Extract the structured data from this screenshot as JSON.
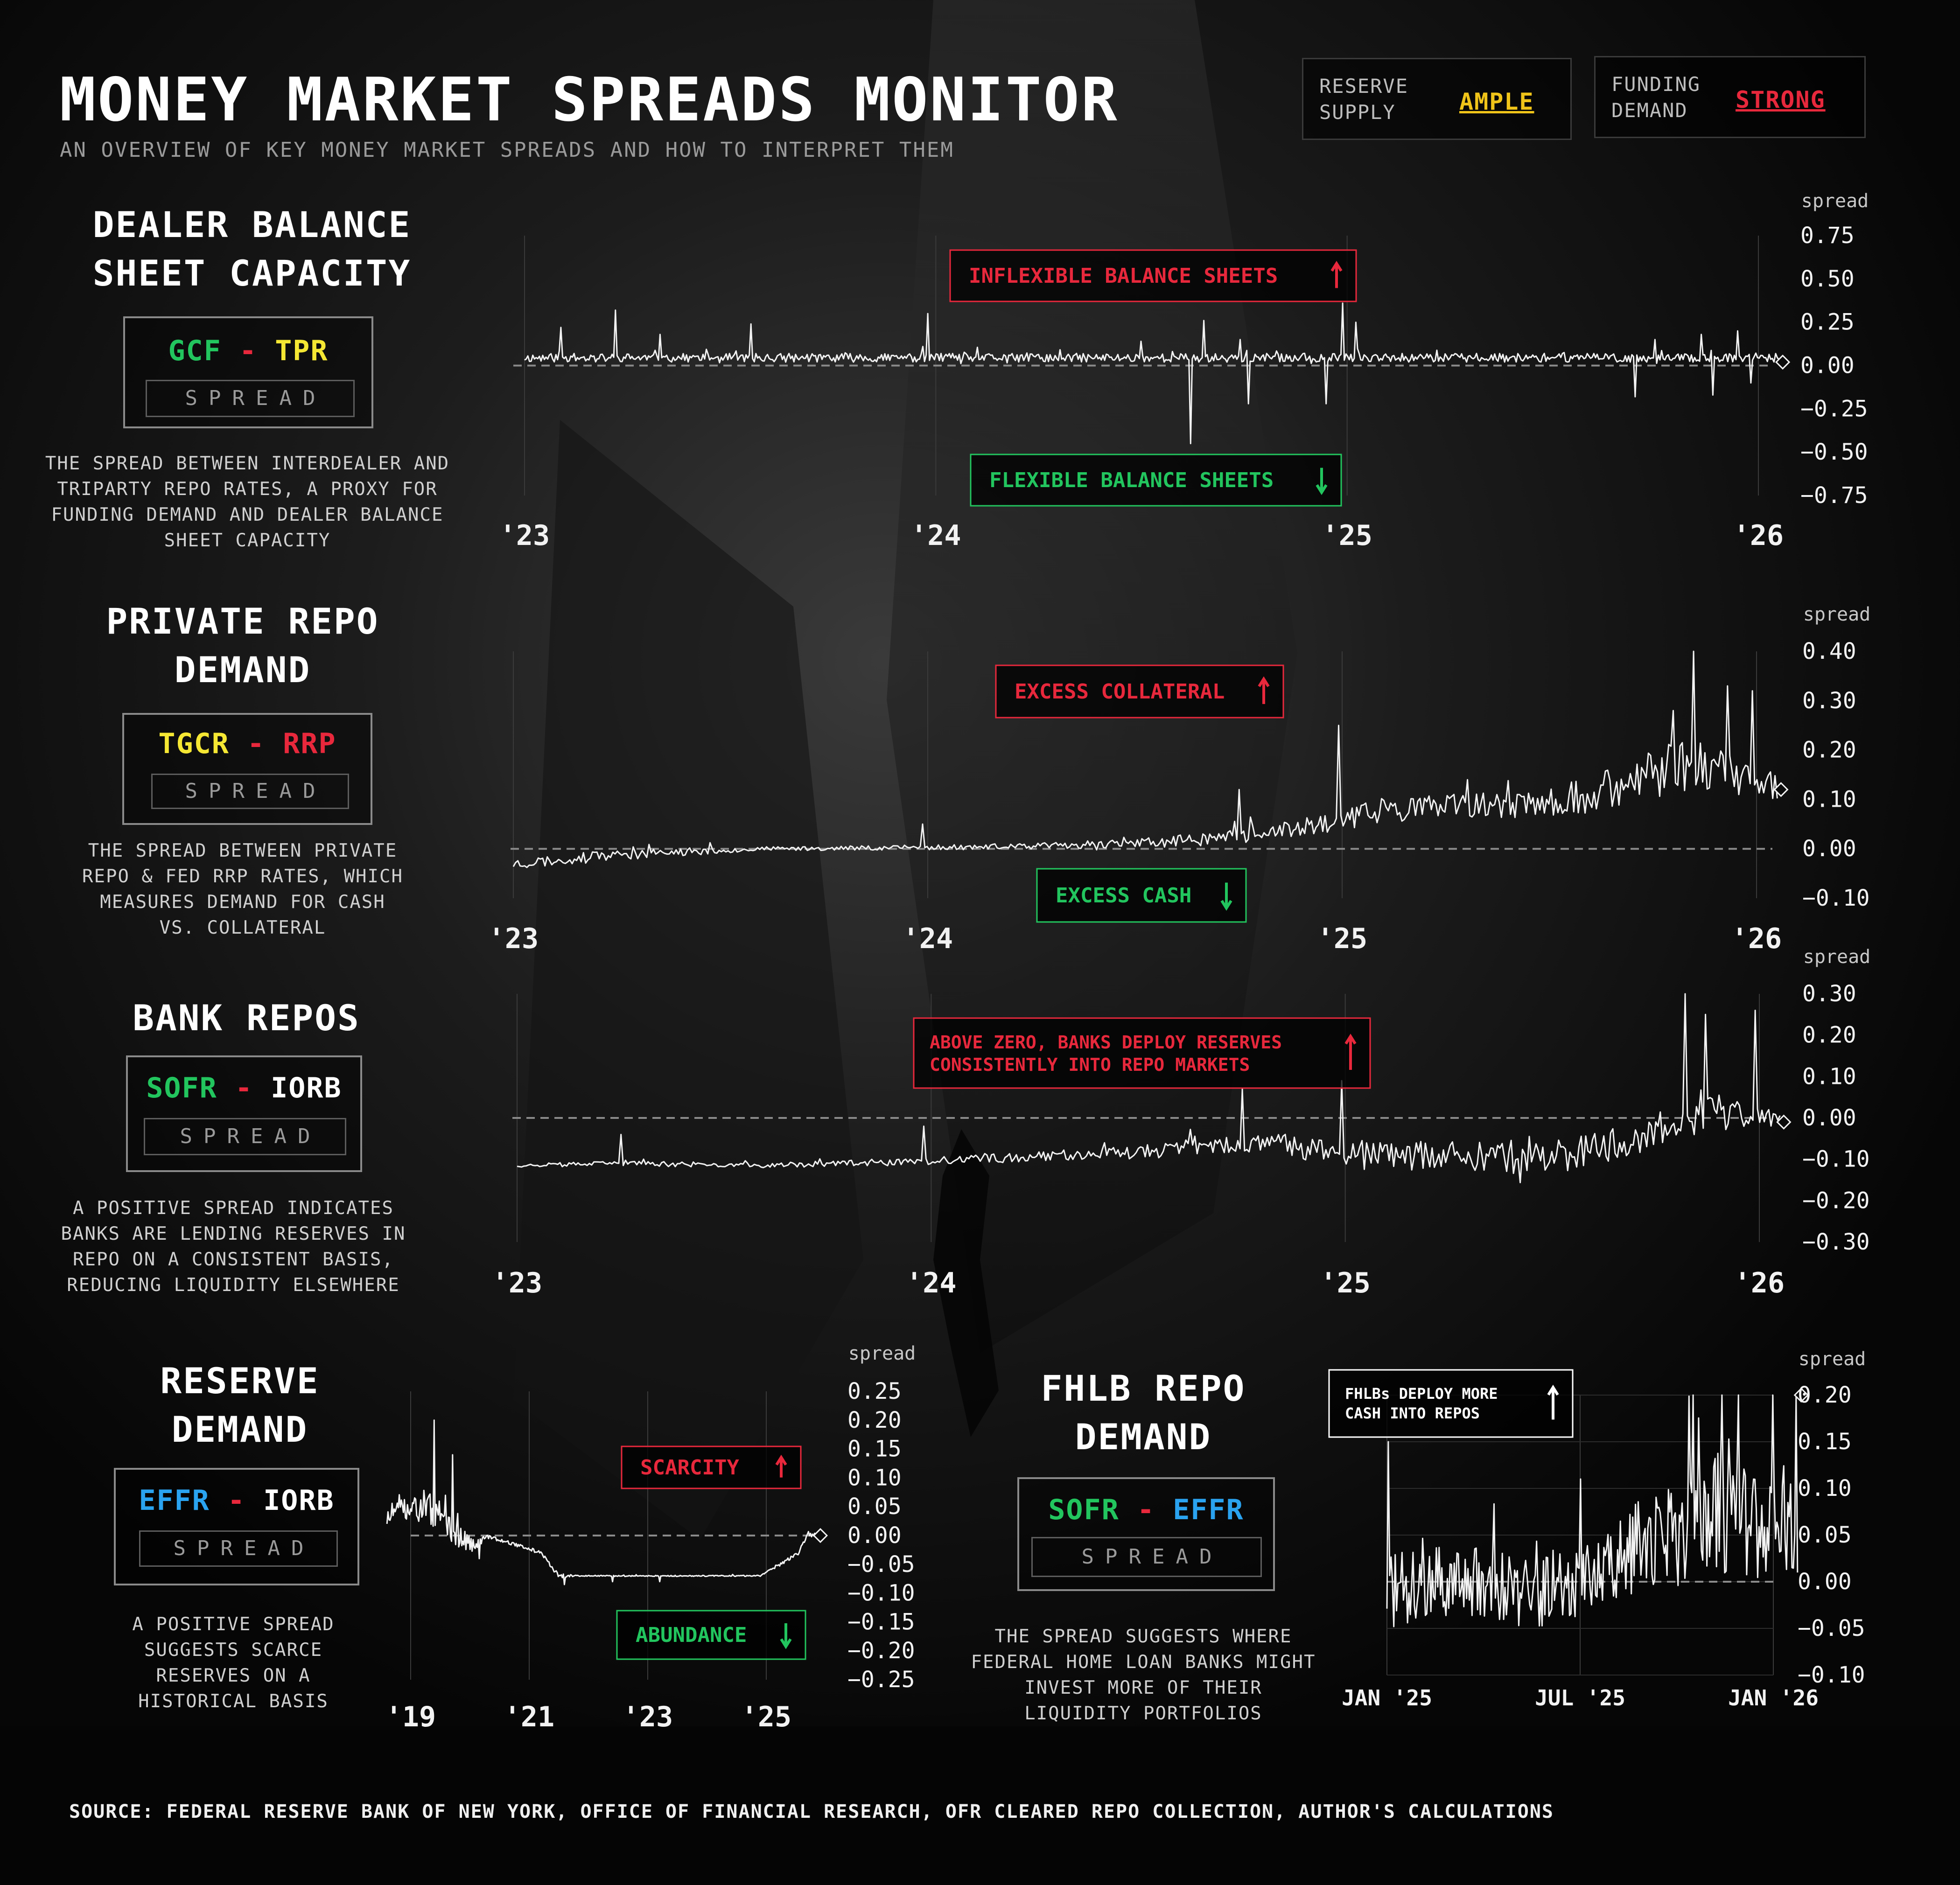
{
  "header": {
    "title": "MONEY MARKET SPREADS MONITOR",
    "subtitle": "AN OVERVIEW OF KEY MONEY MARKET SPREADS AND HOW TO INTERPRET THEM"
  },
  "status": [
    {
      "label_line1": "RESERVE",
      "label_line2": "SUPPLY",
      "value": "AMPLE",
      "color": "#f0c419"
    },
    {
      "label_line1": "FUNDING",
      "label_line2": "DEMAND",
      "value": "STRONG",
      "color": "#e8283c"
    }
  ],
  "colors": {
    "green": "#22c55e",
    "yellow": "#f5e733",
    "red": "#e8283c",
    "blue": "#2aa3f0",
    "white": "#ffffff",
    "dash": "#8a8a8a"
  },
  "sections": {
    "dealer": {
      "title_line1": "DEALER BALANCE",
      "title_line2": "SHEET CAPACITY",
      "formula_left": "GCF",
      "formula_op": "-",
      "formula_right": "TPR",
      "spread_tag": "SPREAD",
      "desc": [
        "THE SPREAD BETWEEN INTERDEALER AND",
        "TRIPARTY REPO RATES, A PROXY FOR",
        "FUNDING DEMAND AND DEALER BALANCE",
        "SHEET CAPACITY"
      ]
    },
    "private": {
      "title_line1": "PRIVATE REPO",
      "title_line2": "DEMAND",
      "formula_left": "TGCR",
      "formula_op": "-",
      "formula_right": "RRP",
      "spread_tag": "SPREAD",
      "desc": [
        "THE SPREAD BETWEEN PRIVATE",
        "REPO & FED RRP RATES, WHICH",
        "MEASURES DEMAND FOR CASH",
        "VS. COLLATERAL"
      ]
    },
    "bank": {
      "title_line1": "BANK REPOS",
      "formula_left": "SOFR",
      "formula_op": "-",
      "formula_right": "IORB",
      "spread_tag": "SPREAD",
      "desc": [
        "A POSITIVE SPREAD INDICATES",
        "BANKS ARE LENDING RESERVES IN",
        "REPO ON A CONSISTENT BASIS,",
        "REDUCING LIQUIDITY ELSEWHERE"
      ]
    },
    "reserve": {
      "title_line1": "RESERVE",
      "title_line2": "DEMAND",
      "formula_left": "EFFR",
      "formula_op": "-",
      "formula_right": "IORB",
      "spread_tag": "SPREAD",
      "desc": [
        "A POSITIVE SPREAD",
        "SUGGESTS SCARCE",
        "RESERVES ON A",
        "HISTORICAL BASIS"
      ]
    },
    "fhlb": {
      "title_line1": "FHLB REPO",
      "title_line2": "DEMAND",
      "formula_left": "SOFR",
      "formula_op": "-",
      "formula_right": "EFFR",
      "spread_tag": "SPREAD",
      "desc": [
        "THE SPREAD SUGGESTS WHERE",
        "FEDERAL HOME LOAN BANKS MIGHT",
        "INVEST MORE OF THEIR",
        "LIQUIDITY PORTFOLIOS"
      ]
    }
  },
  "chart_data": [
    {
      "id": "dealer",
      "type": "line",
      "ylabel": "spread",
      "ylim": [
        -0.75,
        0.75
      ],
      "yticks": [
        "0.75",
        "0.50",
        "0.25",
        "0.00",
        "-0.25",
        "-0.50",
        "-0.75"
      ],
      "ytick_values": [
        0.75,
        0.5,
        0.25,
        0,
        -0.25,
        -0.5,
        -0.75
      ],
      "xlim": [
        2023.0,
        2026.05
      ],
      "xticks": [
        "'23",
        "'24",
        "'25",
        "'26"
      ],
      "xtick_values": [
        2023,
        2024,
        2025,
        2026
      ],
      "baseline": 0.0,
      "series_params": {
        "start": 2023.0,
        "end": 2026.05,
        "n": 760,
        "base": 0.045,
        "noise": 0.025,
        "seed": 11,
        "spikes": [
          [
            2023.09,
            0.22
          ],
          [
            2023.22,
            0.32
          ],
          [
            2023.33,
            0.18
          ],
          [
            2023.55,
            0.24
          ],
          [
            2023.98,
            0.3
          ],
          [
            2024.5,
            0.14
          ],
          [
            2024.65,
            0.26
          ],
          [
            2024.62,
            -0.45
          ],
          [
            2024.74,
            0.15
          ],
          [
            2024.76,
            -0.22
          ],
          [
            2024.95,
            -0.22
          ],
          [
            2024.99,
            0.36
          ],
          [
            2025.02,
            0.25
          ],
          [
            2025.7,
            -0.18
          ],
          [
            2025.75,
            0.15
          ],
          [
            2025.86,
            0.18
          ],
          [
            2025.89,
            -0.17
          ],
          [
            2025.95,
            0.2
          ],
          [
            2025.98,
            -0.1
          ]
        ]
      },
      "end_value": 0.02,
      "annotations": [
        {
          "text": "INFLEXIBLE BALANCE SHEETS",
          "arrow": "up",
          "color": "#e8283c"
        },
        {
          "text": "FLEXIBLE BALANCE SHEETS",
          "arrow": "down",
          "color": "#22c55e"
        }
      ]
    },
    {
      "id": "private",
      "type": "line",
      "ylabel": "spread",
      "ylim": [
        -0.1,
        0.4
      ],
      "yticks": [
        "0.40",
        "0.30",
        "0.20",
        "0.10",
        "0.00",
        "-0.10"
      ],
      "ytick_values": [
        0.4,
        0.3,
        0.2,
        0.1,
        0,
        -0.1
      ],
      "xlim": [
        2023.0,
        2026.05
      ],
      "xticks": [
        "'23",
        "'24",
        "'25",
        "'26"
      ],
      "xtick_values": [
        2023,
        2024,
        2025,
        2026
      ],
      "baseline": 0.0,
      "series_params": {
        "start": 2023.0,
        "end": 2026.05,
        "n": 560,
        "seed": 23,
        "segments": [
          [
            2023.0,
            -0.03,
            0.012
          ],
          [
            2023.3,
            -0.01,
            0.01
          ],
          [
            2023.6,
            0.0,
            0.004
          ],
          [
            2024.25,
            0.005,
            0.006
          ],
          [
            2024.6,
            0.015,
            0.012
          ],
          [
            2024.9,
            0.04,
            0.02
          ],
          [
            2025.1,
            0.08,
            0.025
          ],
          [
            2025.5,
            0.09,
            0.03
          ],
          [
            2025.7,
            0.13,
            0.05
          ],
          [
            2025.85,
            0.18,
            0.06
          ],
          [
            2026.0,
            0.13,
            0.03
          ]
        ],
        "spikes": [
          [
            2023.99,
            0.05
          ],
          [
            2024.75,
            0.12
          ],
          [
            2024.99,
            0.25
          ],
          [
            2025.3,
            0.14
          ],
          [
            2025.8,
            0.28
          ],
          [
            2025.85,
            0.4
          ],
          [
            2025.93,
            0.33
          ],
          [
            2025.99,
            0.32
          ]
        ]
      },
      "end_value": 0.12,
      "annotations": [
        {
          "text": "EXCESS COLLATERAL",
          "arrow": "up",
          "color": "#e8283c"
        },
        {
          "text": "EXCESS CASH",
          "arrow": "down",
          "color": "#22c55e"
        }
      ]
    },
    {
      "id": "bank",
      "type": "line",
      "ylabel": "spread",
      "ylim": [
        -0.3,
        0.3
      ],
      "yticks": [
        "0.30",
        "0.20",
        "0.10",
        "0.00",
        "-0.10",
        "-0.20",
        "-0.30"
      ],
      "ytick_values": [
        0.3,
        0.2,
        0.1,
        0,
        -0.1,
        -0.2,
        -0.3
      ],
      "xlim": [
        2023.0,
        2026.05
      ],
      "xticks": [
        "'23",
        "'24",
        "'25",
        "'26"
      ],
      "xtick_values": [
        2023,
        2024,
        2025,
        2026
      ],
      "baseline": 0.0,
      "series_params": {
        "start": 2023.0,
        "end": 2026.05,
        "n": 560,
        "seed": 37,
        "segments": [
          [
            2023.0,
            -0.115,
            0.004
          ],
          [
            2023.25,
            -0.11,
            0.006
          ],
          [
            2023.6,
            -0.115,
            0.006
          ],
          [
            2024.0,
            -0.105,
            0.01
          ],
          [
            2024.5,
            -0.08,
            0.015
          ],
          [
            2024.8,
            -0.06,
            0.025
          ],
          [
            2025.05,
            -0.09,
            0.035
          ],
          [
            2025.5,
            -0.1,
            0.04
          ],
          [
            2025.7,
            -0.05,
            0.04
          ],
          [
            2025.85,
            0.02,
            0.06
          ],
          [
            2026.0,
            0.0,
            0.02
          ]
        ],
        "spikes": [
          [
            2023.25,
            -0.04
          ],
          [
            2023.98,
            -0.02
          ],
          [
            2024.75,
            0.07
          ],
          [
            2024.99,
            0.09
          ],
          [
            2025.82,
            0.3
          ],
          [
            2025.87,
            0.25
          ],
          [
            2025.99,
            0.26
          ]
        ]
      },
      "end_value": -0.01,
      "annotations": [
        {
          "text": "ABOVE ZERO, BANKS DEPLOY RESERVES",
          "text2": "CONSISTENTLY INTO REPO MARKETS",
          "arrow": "up",
          "color": "#e8283c"
        }
      ]
    },
    {
      "id": "reserve",
      "type": "line",
      "ylabel": "spread",
      "ylim": [
        -0.25,
        0.25
      ],
      "yticks": [
        "0.25",
        "0.20",
        "0.15",
        "0.10",
        "0.05",
        "0.00",
        "-0.05",
        "-0.10",
        "-0.15",
        "-0.20",
        "-0.25"
      ],
      "ytick_values": [
        0.25,
        0.2,
        0.15,
        0.1,
        0.05,
        0,
        -0.05,
        -0.1,
        -0.15,
        -0.2,
        -0.25
      ],
      "xlim": [
        2018.5,
        2025.9
      ],
      "xticks": [
        "'19",
        "'21",
        "'23",
        "'25"
      ],
      "xtick_values": [
        2019,
        2021,
        2023,
        2025
      ],
      "baseline": 0.0,
      "series_params": {
        "start": 2018.6,
        "end": 2025.85,
        "n": 420,
        "seed": 51,
        "segments": [
          [
            2018.6,
            0.03,
            0.02
          ],
          [
            2019.0,
            0.06,
            0.03
          ],
          [
            2019.4,
            0.04,
            0.03
          ],
          [
            2019.8,
            0.0,
            0.02
          ],
          [
            2020.1,
            -0.02,
            0.01
          ],
          [
            2020.25,
            0.0,
            0.004
          ],
          [
            2020.6,
            -0.01,
            0.003
          ],
          [
            2020.9,
            -0.02,
            0.003
          ],
          [
            2021.2,
            -0.03,
            0.003
          ],
          [
            2021.5,
            -0.07,
            0.004
          ],
          [
            2021.8,
            -0.07,
            0.001
          ],
          [
            2024.9,
            -0.07,
            0.001
          ],
          [
            2025.55,
            -0.03,
            0.005
          ],
          [
            2025.7,
            0.0,
            0.004
          ]
        ],
        "spikes": [
          [
            2019.4,
            0.2
          ],
          [
            2019.7,
            0.14
          ],
          [
            2020.15,
            -0.04
          ],
          [
            2021.6,
            -0.085
          ],
          [
            2022.4,
            -0.08
          ],
          [
            2023.2,
            -0.08
          ]
        ]
      },
      "end_value": 0.0,
      "annotations": [
        {
          "text": "SCARCITY",
          "arrow": "up",
          "color": "#e8283c"
        },
        {
          "text": "ABUNDANCE",
          "arrow": "down",
          "color": "#22c55e"
        }
      ]
    },
    {
      "id": "fhlb",
      "type": "line",
      "ylabel": "spread",
      "ylim": [
        -0.1,
        0.2
      ],
      "yticks": [
        "0.20",
        "0.15",
        "0.10",
        "0.05",
        "0.00",
        "-0.05",
        "-0.10"
      ],
      "ytick_values": [
        0.2,
        0.15,
        0.1,
        0.05,
        0,
        -0.05,
        -0.1
      ],
      "xlim": [
        0,
        12.8
      ],
      "xticks": [
        "JAN '25",
        "JUL '25",
        "JAN '26"
      ],
      "xtick_values": [
        0,
        6,
        12
      ],
      "baseline": 0.0,
      "series_params": {
        "start": 0,
        "end": 12.75,
        "n": 300,
        "seed": 71,
        "segments": [
          [
            0,
            -0.01,
            0.04
          ],
          [
            2,
            0.0,
            0.04
          ],
          [
            5,
            -0.01,
            0.04
          ],
          [
            7,
            0.02,
            0.04
          ],
          [
            8.5,
            0.05,
            0.06
          ],
          [
            10,
            0.07,
            0.07
          ],
          [
            12,
            0.06,
            0.07
          ]
        ],
        "spikes": [
          [
            0.05,
            0.15
          ],
          [
            6.0,
            0.11
          ],
          [
            9.5,
            0.2
          ],
          [
            10.4,
            0.2
          ],
          [
            10.9,
            0.2
          ],
          [
            12.0,
            0.2
          ],
          [
            12.7,
            0.2
          ]
        ]
      },
      "end_value": 0.2,
      "annotations": [
        {
          "text": "FHLBs DEPLOY MORE",
          "text2": "CASH INTO REPOS",
          "arrow": "up",
          "color": "#ffffff"
        }
      ]
    }
  ],
  "footer": {
    "source": "SOURCE: FEDERAL RESERVE BANK OF NEW YORK, OFFICE OF FINANCIAL RESEARCH, OFR CLEARED REPO COLLECTION, AUTHOR'S CALCULATIONS"
  }
}
